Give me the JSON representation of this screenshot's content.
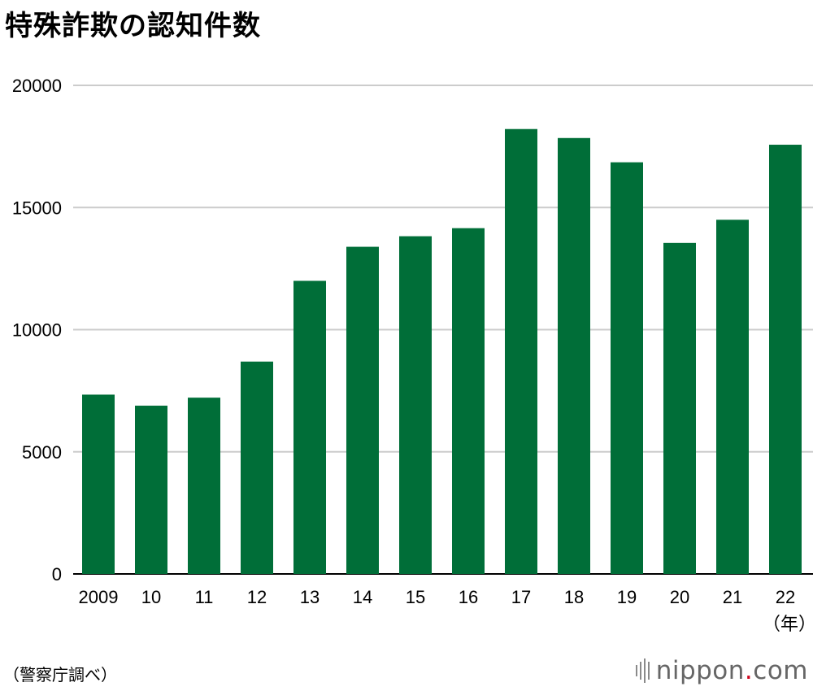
{
  "title": "特殊詐欺の認知件数",
  "source": "（警察庁調べ）",
  "logo": {
    "name": "nippon",
    "dot": ".",
    "tld": "com"
  },
  "chart_data": {
    "type": "bar",
    "title": "特殊詐欺の認知件数",
    "categories": [
      "2009",
      "10",
      "11",
      "12",
      "13",
      "14",
      "15",
      "16",
      "17",
      "18",
      "19",
      "20",
      "21",
      "22"
    ],
    "values": [
      7340,
      6888,
      7216,
      8693,
      11998,
      13392,
      13824,
      14154,
      18212,
      17844,
      16851,
      13550,
      14498,
      17570
    ],
    "xunit": "（年）",
    "ylim": [
      0,
      20000
    ],
    "yticks": [
      0,
      5000,
      10000,
      15000,
      20000
    ],
    "grid": true,
    "bar_color": "#006e38",
    "grid_color": "#cccccc"
  }
}
